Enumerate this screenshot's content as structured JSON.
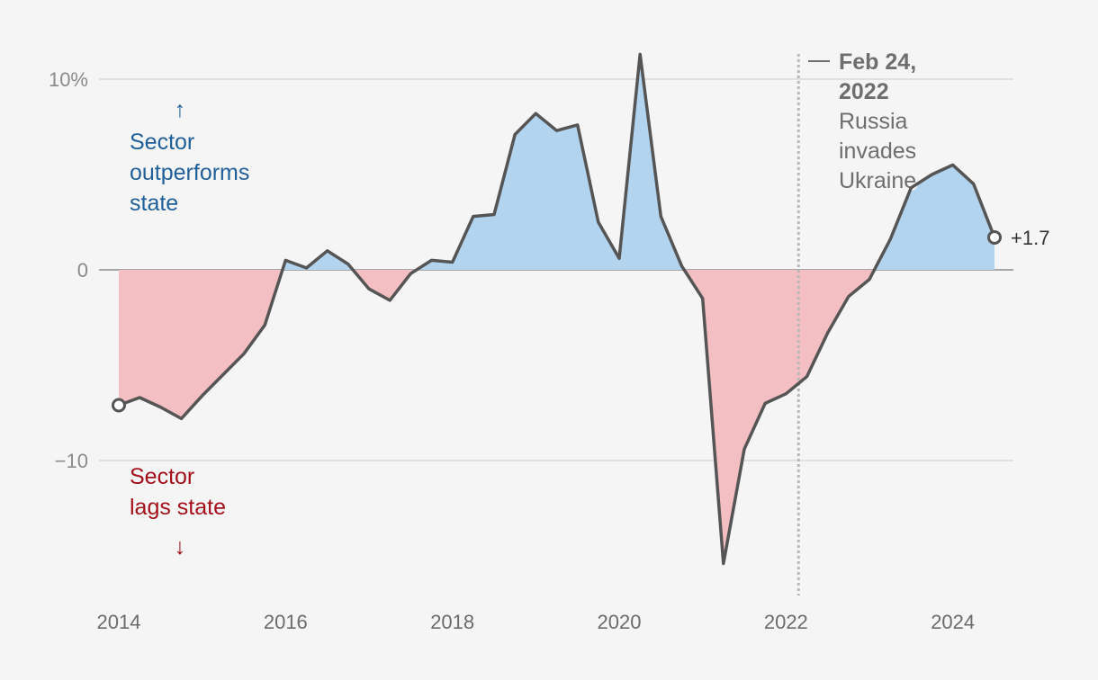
{
  "chart_data": {
    "type": "area",
    "xlim": [
      2014,
      2024.5
    ],
    "ylim": [
      -16,
      11
    ],
    "y_ticks": [
      {
        "value": 10,
        "label": "10%"
      },
      {
        "value": 0,
        "label": "0"
      },
      {
        "value": -10,
        "label": "−10"
      }
    ],
    "x_ticks": [
      {
        "value": 2014,
        "label": "2014"
      },
      {
        "value": 2016,
        "label": "2016"
      },
      {
        "value": 2018,
        "label": "2018"
      },
      {
        "value": 2020,
        "label": "2020"
      },
      {
        "value": 2022,
        "label": "2022"
      },
      {
        "value": 2024,
        "label": "2024"
      }
    ],
    "grid": true,
    "series": [
      {
        "x": [
          2014.0,
          2014.25,
          2014.5,
          2014.75,
          2015.0,
          2015.25,
          2015.5,
          2015.75,
          2016.0,
          2016.25,
          2016.5,
          2016.75,
          2017.0,
          2017.25,
          2017.5,
          2017.75,
          2018.0,
          2018.25,
          2018.5,
          2018.75,
          2019.0,
          2019.25,
          2019.5,
          2019.75,
          2020.0,
          2020.25,
          2020.5,
          2020.75,
          2021.0,
          2021.25,
          2021.5,
          2021.75,
          2022.0,
          2022.25,
          2022.5,
          2022.75,
          2023.0,
          2023.25,
          2023.5,
          2023.75,
          2024.0,
          2024.25,
          2024.5
        ],
        "values": [
          -7.1,
          -6.7,
          -7.2,
          -7.8,
          -6.6,
          -5.5,
          -4.4,
          -2.9,
          0.5,
          0.1,
          1.0,
          0.3,
          -1.0,
          -1.6,
          -0.2,
          0.5,
          0.4,
          2.8,
          2.9,
          7.1,
          8.2,
          7.3,
          7.6,
          2.5,
          0.6,
          11.3,
          2.8,
          0.2,
          -1.5,
          -15.4,
          -9.4,
          -7.0,
          -6.5,
          -5.6,
          -3.3,
          -1.4,
          -0.5,
          1.6,
          4.3,
          5.0,
          5.5,
          4.5,
          1.7
        ]
      }
    ],
    "positive_color": "#b3d4ef",
    "negative_color": "#f4bfc2",
    "line_color": "#555555",
    "end_label": "+1.7",
    "annotation": {
      "x": 2022.15,
      "title_lines": [
        "Feb 24,",
        "2022"
      ],
      "text_lines": [
        "Russia",
        "invades",
        "Ukraine"
      ]
    },
    "notes": {
      "outperform": {
        "arrow": "↑",
        "lines": [
          "Sector",
          "outperforms",
          "state"
        ],
        "color": "#1f5f99"
      },
      "lag": {
        "arrow": "↓",
        "lines": [
          "Sector",
          "lags state"
        ],
        "color": "#a3101a"
      }
    }
  }
}
